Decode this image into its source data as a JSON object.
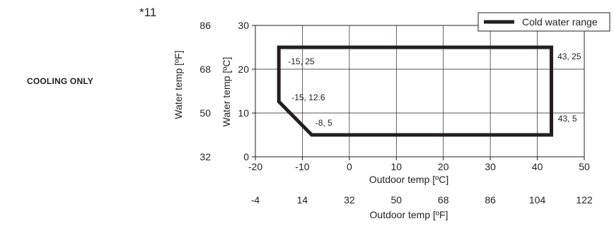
{
  "footnote": "*11",
  "side_label": "COOLING ONLY",
  "chart_data": {
    "type": "line",
    "title": "",
    "xlabel": "Outdoor temp [ºC]",
    "ylabel": "Water temp [ºC]",
    "xlim": [
      -20,
      50
    ],
    "ylim": [
      0,
      30
    ],
    "x_ticks": [
      "-20",
      "-10",
      "0",
      "10",
      "20",
      "30",
      "40",
      "50"
    ],
    "y_ticks": [
      "0",
      "10",
      "20",
      "30"
    ],
    "grid": true,
    "legend_position": "top-right",
    "secondary_x": {
      "label": "Outdoor temp [ºF]",
      "ticks": [
        "-4",
        "14",
        "32",
        "50",
        "68",
        "86",
        "104",
        "122"
      ]
    },
    "secondary_y": {
      "label": "Water temp [ºF]",
      "ticks": [
        "32",
        "50",
        "68",
        "86"
      ]
    },
    "series": [
      {
        "name": "Cold water range",
        "color": "#231f20",
        "points": [
          [
            -15,
            25
          ],
          [
            43,
            25
          ],
          [
            43,
            5
          ],
          [
            -8,
            5
          ],
          [
            -15,
            12.6
          ],
          [
            -15,
            25
          ]
        ]
      }
    ],
    "annotations": [
      {
        "text": "-15, 25",
        "x": -15,
        "y": 25
      },
      {
        "text": "-15, 12.6",
        "x": -15,
        "y": 12.6
      },
      {
        "text": "-8, 5",
        "x": -8,
        "y": 5
      },
      {
        "text": "43, 25",
        "x": 43,
        "y": 25
      },
      {
        "text": "43, 5",
        "x": 43,
        "y": 5
      }
    ]
  }
}
